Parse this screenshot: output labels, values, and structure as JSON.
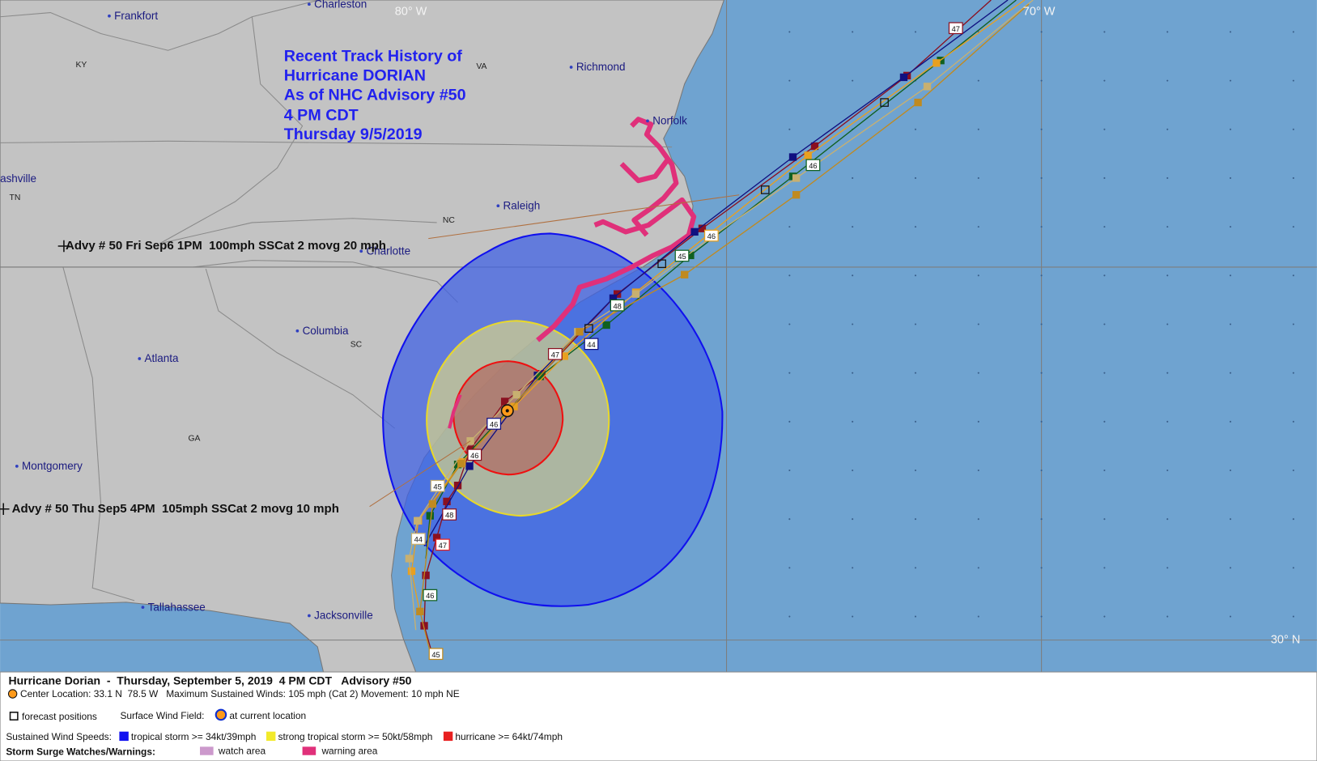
{
  "title": [
    "Recent Track History of",
    "Hurricane DORIAN",
    "As of NHC Advisory #50",
    "4 PM CDT",
    "Thursday 9/5/2019"
  ],
  "places": [
    "Frankfort",
    "Charleston",
    "Richmond",
    "Norfolk",
    "Raleigh",
    "Charlotte",
    "Columbia",
    "Atlanta",
    "Montgomery",
    "Tallahassee",
    "Jacksonville",
    "ashville"
  ],
  "states": [
    "KY",
    "VA",
    "TN",
    "NC",
    "SC",
    "GA"
  ],
  "grid_labels": [
    "80° W",
    "70° W",
    "30° N"
  ],
  "annotations": [
    "Advy # 50 Fri Sep6 1PM  100mph SSCat 2 movg 20 mph",
    "Advy # 50 Thu Sep5 4PM  105mph SSCat 2 movg 10 mph"
  ],
  "track_labels": [
    "47",
    "46",
    "46",
    "45",
    "48",
    "44",
    "47",
    "46",
    "46",
    "45",
    "48",
    "44",
    "47",
    "46",
    "45"
  ],
  "legend": {
    "heading": "Hurricane Dorian  -  Thursday, September 5, 2019  4 PM CDT   Advisory #50",
    "center": "Center Location: 33.1 N  78.5 W   Maximum Sustained Winds: 105 mph (Cat 2) Movement: 10 mph NE",
    "forecast": "forecast positions",
    "wind_field": "Surface Wind Field:",
    "current": "at current location",
    "speeds": "Sustained Wind Speeds:",
    "ts": "tropical storm >= 34kt/39mph",
    "sts": "strong tropical storm >= 50kt/58mph",
    "hu": "hurricane >= 64kt/74mph",
    "surge": "Storm Surge Watches/Warnings:",
    "watch": "watch area",
    "warning": "warning area"
  }
}
